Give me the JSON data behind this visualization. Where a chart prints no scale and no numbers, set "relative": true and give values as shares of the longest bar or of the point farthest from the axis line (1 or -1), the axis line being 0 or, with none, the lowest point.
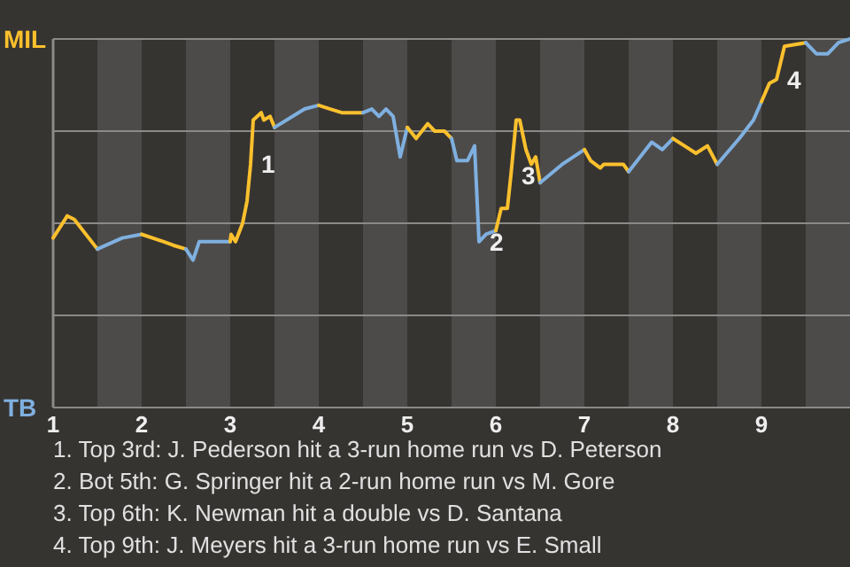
{
  "chart_data": {
    "type": "line",
    "relative": true,
    "xlim": [
      1,
      10
    ],
    "xticks": [
      1,
      2,
      3,
      4,
      5,
      6,
      7,
      8,
      9
    ],
    "grid": "y",
    "legend": false,
    "marker": "none",
    "line_style": "solid",
    "bands": [
      {
        "axis": "x",
        "from": 1.5,
        "to": 2,
        "color": "#4d4b49"
      },
      {
        "axis": "x",
        "from": 2.5,
        "to": 3,
        "color": "#4d4b49"
      },
      {
        "axis": "x",
        "from": 3.5,
        "to": 4,
        "color": "#4d4b49"
      },
      {
        "axis": "x",
        "from": 4.5,
        "to": 5,
        "color": "#4d4b49"
      },
      {
        "axis": "x",
        "from": 5.5,
        "to": 6,
        "color": "#4d4b49"
      },
      {
        "axis": "x",
        "from": 6.5,
        "to": 7,
        "color": "#4d4b49"
      },
      {
        "axis": "x",
        "from": 7.5,
        "to": 8,
        "color": "#4d4b49"
      },
      {
        "axis": "x",
        "from": 8.5,
        "to": 9,
        "color": "#4d4b49"
      },
      {
        "axis": "x",
        "from": 9.5,
        "to": 10,
        "color": "#4d4b49"
      }
    ],
    "series": [
      {
        "name": "MIL",
        "color": "#fbc02d",
        "x": [
          1,
          1.16,
          1.24,
          1.5
        ],
        "values": [
          0.46,
          0.52,
          0.51,
          0.43
        ]
      },
      {
        "name": "TB",
        "color": "#7fb0e0",
        "x": [
          1.5,
          1.78,
          2
        ],
        "values": [
          0.43,
          0.46,
          0.47
        ]
      },
      {
        "color": "#fbc02d",
        "x": [
          2,
          2.25,
          2.36,
          2.5
        ],
        "values": [
          0.47,
          0.45,
          0.44,
          0.43
        ]
      },
      {
        "color": "#7fb0e0",
        "x": [
          2.5,
          2.58,
          2.65,
          2.72,
          2.96,
          3
        ],
        "values": [
          0.43,
          0.4,
          0.45,
          0.45,
          0.45,
          0.45
        ]
      },
      {
        "color": "#fbc02d",
        "x": [
          3,
          3.01,
          3.06,
          3.14,
          3.19,
          3.23,
          3.26,
          3.35,
          3.38,
          3.45,
          3.5
        ],
        "values": [
          0.45,
          0.47,
          0.45,
          0.5,
          0.56,
          0.66,
          0.78,
          0.8,
          0.78,
          0.79,
          0.76
        ]
      },
      {
        "color": "#7fb0e0",
        "x": [
          3.5,
          3.84,
          4
        ],
        "values": [
          0.76,
          0.81,
          0.82
        ]
      },
      {
        "color": "#fbc02d",
        "x": [
          4,
          4.13,
          4.26,
          4.5
        ],
        "values": [
          0.82,
          0.81,
          0.8,
          0.8
        ]
      },
      {
        "color": "#7fb0e0",
        "x": [
          4.5,
          4.6,
          4.68,
          4.76,
          4.84,
          4.92,
          5
        ],
        "values": [
          0.8,
          0.81,
          0.79,
          0.81,
          0.79,
          0.68,
          0.76
        ]
      },
      {
        "color": "#fbc02d",
        "x": [
          5,
          5.1,
          5.23,
          5.31,
          5.42,
          5.5
        ],
        "values": [
          0.76,
          0.73,
          0.77,
          0.75,
          0.75,
          0.73
        ]
      },
      {
        "color": "#7fb0e0",
        "x": [
          5.5,
          5.56,
          5.68,
          5.76,
          5.81,
          5.89,
          6
        ],
        "values": [
          0.73,
          0.67,
          0.67,
          0.71,
          0.45,
          0.47,
          0.48
        ]
      },
      {
        "color": "#fbc02d",
        "x": [
          6,
          6.06,
          6.13,
          6.17,
          6.23,
          6.27,
          6.34,
          6.4,
          6.45,
          6.5
        ],
        "values": [
          0.48,
          0.54,
          0.54,
          0.63,
          0.78,
          0.78,
          0.7,
          0.66,
          0.68,
          0.61
        ]
      },
      {
        "color": "#7fb0e0",
        "x": [
          6.5,
          6.75,
          7
        ],
        "values": [
          0.61,
          0.66,
          0.7
        ]
      },
      {
        "color": "#fbc02d",
        "x": [
          7,
          7.07,
          7.18,
          7.22,
          7.44,
          7.5
        ],
        "values": [
          0.7,
          0.67,
          0.65,
          0.66,
          0.66,
          0.64
        ]
      },
      {
        "color": "#7fb0e0",
        "x": [
          7.5,
          7.76,
          7.88,
          8
        ],
        "values": [
          0.64,
          0.72,
          0.7,
          0.73
        ]
      },
      {
        "color": "#fbc02d",
        "x": [
          8,
          8.13,
          8.26,
          8.39,
          8.5
        ],
        "values": [
          0.73,
          0.71,
          0.69,
          0.71,
          0.66
        ]
      },
      {
        "color": "#7fb0e0",
        "x": [
          8.5,
          8.75,
          8.91,
          9
        ],
        "values": [
          0.66,
          0.73,
          0.78,
          0.83
        ]
      },
      {
        "color": "#fbc02d",
        "x": [
          9,
          9.09,
          9.17,
          9.26,
          9.5
        ],
        "values": [
          0.83,
          0.88,
          0.89,
          0.98,
          0.99
        ]
      },
      {
        "color": "#7fb0e0",
        "x": [
          9.5,
          9.62,
          9.75,
          9.87,
          10
        ],
        "values": [
          0.99,
          0.96,
          0.96,
          0.99,
          1
        ]
      }
    ],
    "annotations": [
      {
        "text": "1",
        "x": 3.23,
        "y": 0.66
      },
      {
        "text": "2",
        "x": 5.81,
        "y": 0.45
      },
      {
        "text": "3",
        "x": 6.17,
        "y": 0.63
      },
      {
        "text": "4",
        "x": 9.17,
        "y": 0.89
      },
      "1. Top 3rd: J. Pederson hit a 3-run home run vs D. Peterson",
      "2. Bot 5th: G. Springer hit a 2-run home run vs M. Gore",
      "3. Top 6th: K. Newman hit a double vs D. Santana",
      "4. Top 9th: J. Meyers hit a 3-run home run vs E. Small"
    ]
  }
}
